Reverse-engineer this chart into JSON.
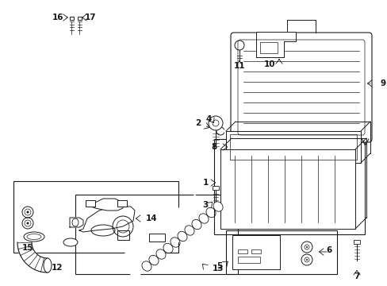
{
  "bg_color": "#ffffff",
  "lc": "#1a1a1a",
  "lw": 0.7,
  "fig_w": 4.89,
  "fig_h": 3.6,
  "dpi": 100,
  "xlim": [
    0,
    489
  ],
  "ylim": [
    0,
    360
  ]
}
